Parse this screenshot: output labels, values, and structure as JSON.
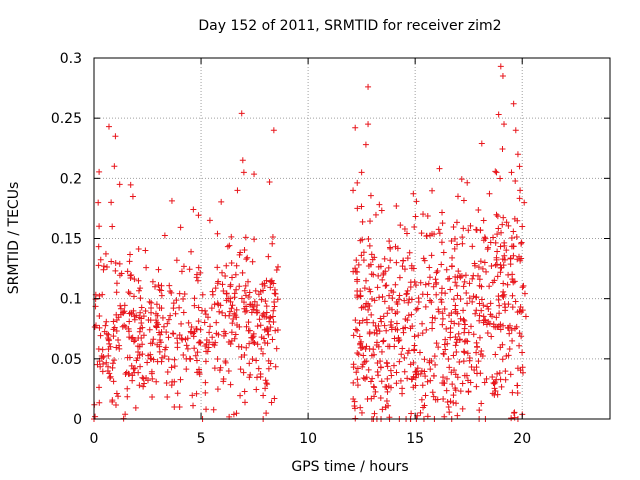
{
  "chart_data": {
    "type": "scatter",
    "title": "Day 152 of 2011, SRMTID for receiver zim2",
    "xlabel": "GPS time / hours",
    "ylabel": "SRMTID / TECUs",
    "xlim": [
      0,
      24.1
    ],
    "ylim": [
      0,
      0.3
    ],
    "x_ticks": [
      0,
      5,
      10,
      15,
      20
    ],
    "x_tick_labels": [
      "0",
      "5",
      "10",
      "15",
      "20"
    ],
    "y_ticks": [
      0,
      0.05,
      0.1,
      0.15,
      0.2,
      0.25,
      0.3
    ],
    "y_tick_labels": [
      "0",
      "0.05",
      "0.1",
      "0.15",
      "0.2",
      "0.25",
      "0.3"
    ],
    "grid": true,
    "marker": "+",
    "colors": {
      "points": "#e8141a",
      "grid": "#a0a0a0",
      "axes": "#000000"
    },
    "series": [
      {
        "name": "zim2",
        "segments": [
          {
            "x_start": 0.0,
            "x_end": 8.6,
            "y_min": 0.0,
            "y_max": 0.26,
            "baseline": [
              [
                0.0,
                0.095
              ],
              [
                0.5,
                0.075
              ],
              [
                1.0,
                0.085
              ],
              [
                2.0,
                0.075
              ],
              [
                3.0,
                0.07
              ],
              [
                4.0,
                0.08
              ],
              [
                4.5,
                0.065
              ],
              [
                5.0,
                0.065
              ],
              [
                6.0,
                0.08
              ],
              [
                7.0,
                0.09
              ],
              [
                8.0,
                0.08
              ],
              [
                8.6,
                0.1
              ]
            ],
            "spread": 0.03,
            "count": 560
          },
          {
            "x_start": 12.1,
            "x_end": 20.2,
            "y_min": 0.0,
            "y_max": 0.3,
            "baseline": [
              [
                12.1,
                0.08
              ],
              [
                13.0,
                0.075
              ],
              [
                14.0,
                0.07
              ],
              [
                15.0,
                0.075
              ],
              [
                16.0,
                0.08
              ],
              [
                17.0,
                0.085
              ],
              [
                18.0,
                0.09
              ],
              [
                19.0,
                0.1
              ],
              [
                20.2,
                0.11
              ]
            ],
            "spread": 0.045,
            "count": 720
          }
        ],
        "highlights": [
          {
            "x": 0.0,
            "y": 0.0
          },
          {
            "x": 0.05,
            "y": 0.002
          },
          {
            "x": 0.7,
            "y": 0.243
          },
          {
            "x": 1.0,
            "y": 0.235
          },
          {
            "x": 0.95,
            "y": 0.21
          },
          {
            "x": 0.8,
            "y": 0.18
          },
          {
            "x": 0.85,
            "y": 0.16
          },
          {
            "x": 1.2,
            "y": 0.195
          },
          {
            "x": 2.4,
            "y": 0.14
          },
          {
            "x": 4.0,
            "y": 0.01
          },
          {
            "x": 6.9,
            "y": 0.254
          },
          {
            "x": 6.95,
            "y": 0.215
          },
          {
            "x": 7.0,
            "y": 0.205
          },
          {
            "x": 6.7,
            "y": 0.19
          },
          {
            "x": 8.4,
            "y": 0.24
          },
          {
            "x": 8.2,
            "y": 0.197
          },
          {
            "x": 7.9,
            "y": 0.0
          },
          {
            "x": 12.8,
            "y": 0.276
          },
          {
            "x": 12.8,
            "y": 0.245
          },
          {
            "x": 12.2,
            "y": 0.242
          },
          {
            "x": 12.7,
            "y": 0.228
          },
          {
            "x": 12.1,
            "y": 0.19
          },
          {
            "x": 12.3,
            "y": 0.175
          },
          {
            "x": 12.5,
            "y": 0.205
          },
          {
            "x": 13.3,
            "y": 0.06
          },
          {
            "x": 17.0,
            "y": 0.185
          },
          {
            "x": 18.2,
            "y": 0.165
          },
          {
            "x": 18.8,
            "y": 0.205
          },
          {
            "x": 19.0,
            "y": 0.293
          },
          {
            "x": 19.1,
            "y": 0.285
          },
          {
            "x": 18.9,
            "y": 0.253
          },
          {
            "x": 19.15,
            "y": 0.245
          },
          {
            "x": 19.6,
            "y": 0.262
          },
          {
            "x": 19.7,
            "y": 0.24
          },
          {
            "x": 19.8,
            "y": 0.22
          },
          {
            "x": 19.9,
            "y": 0.19
          },
          {
            "x": 19.5,
            "y": 0.205
          },
          {
            "x": 20.0,
            "y": 0.16
          },
          {
            "x": 19.8,
            "y": 0.0
          }
        ]
      }
    ]
  }
}
